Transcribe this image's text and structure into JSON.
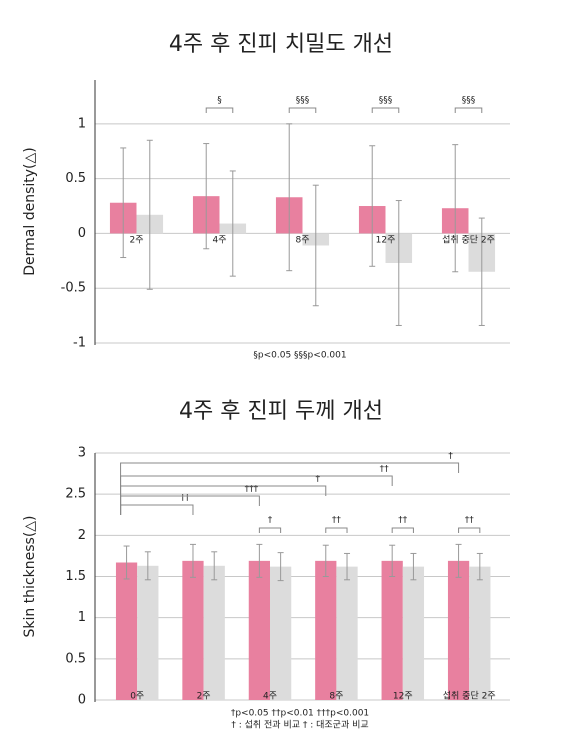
{
  "chart_data": [
    {
      "type": "bar",
      "title": "4주 후 진피 치밀도 개선",
      "y_label": "Dermal density(△)",
      "categories": [
        "2주",
        "4주",
        "8주",
        "12주",
        "섭취 중단 2주"
      ],
      "series": [
        {
          "color": "#e8809f",
          "values": [
            0.28,
            0.34,
            0.33,
            0.25,
            0.23
          ],
          "errors": [
            0.5,
            0.48,
            0.67,
            0.55,
            0.58
          ]
        },
        {
          "color": "#dcdcdc",
          "values": [
            0.17,
            0.09,
            -0.11,
            -0.27,
            -0.35
          ],
          "errors": [
            0.68,
            0.48,
            0.55,
            0.57,
            0.49
          ]
        }
      ],
      "within_group_marks": [
        null,
        "§",
        "§§§",
        "§§§",
        "§§§"
      ],
      "footnotes": [
        "§p<0.05  §§§p<0.001"
      ],
      "ylim": [
        -1,
        1.4
      ],
      "yticks": [
        -1,
        -0.5,
        0,
        0.5,
        1
      ],
      "grid": true
    },
    {
      "type": "bar",
      "title": "4주 후 진피 두께 개선",
      "y_label": "Skin thickness(△)",
      "categories": [
        "0주",
        "2주",
        "4주",
        "8주",
        "12주",
        "섭취 중단 2주"
      ],
      "series": [
        {
          "color": "#e8809f",
          "values": [
            1.67,
            1.69,
            1.69,
            1.69,
            1.69,
            1.69
          ],
          "errors": [
            0.2,
            0.2,
            0.2,
            0.19,
            0.19,
            0.2
          ]
        },
        {
          "color": "#dcdcdc",
          "values": [
            1.63,
            1.63,
            1.62,
            1.62,
            1.62,
            1.62
          ],
          "errors": [
            0.17,
            0.17,
            0.17,
            0.16,
            0.16,
            0.16
          ]
        }
      ],
      "within_group_marks": [
        null,
        null,
        "†",
        "††",
        "††",
        "††"
      ],
      "vs_baseline_marks": [
        null,
        "††",
        "†††",
        "†",
        "††",
        "†"
      ],
      "footnotes": [
        "†p<0.05  ††p<0.01  †††p<0.001",
        "† : 섭취 전과 비교   † : 대조군과 비교"
      ],
      "ylim": [
        0,
        3
      ],
      "yticks": [
        0,
        0.5,
        1,
        1.5,
        2,
        2.5,
        3
      ],
      "grid": true
    }
  ]
}
